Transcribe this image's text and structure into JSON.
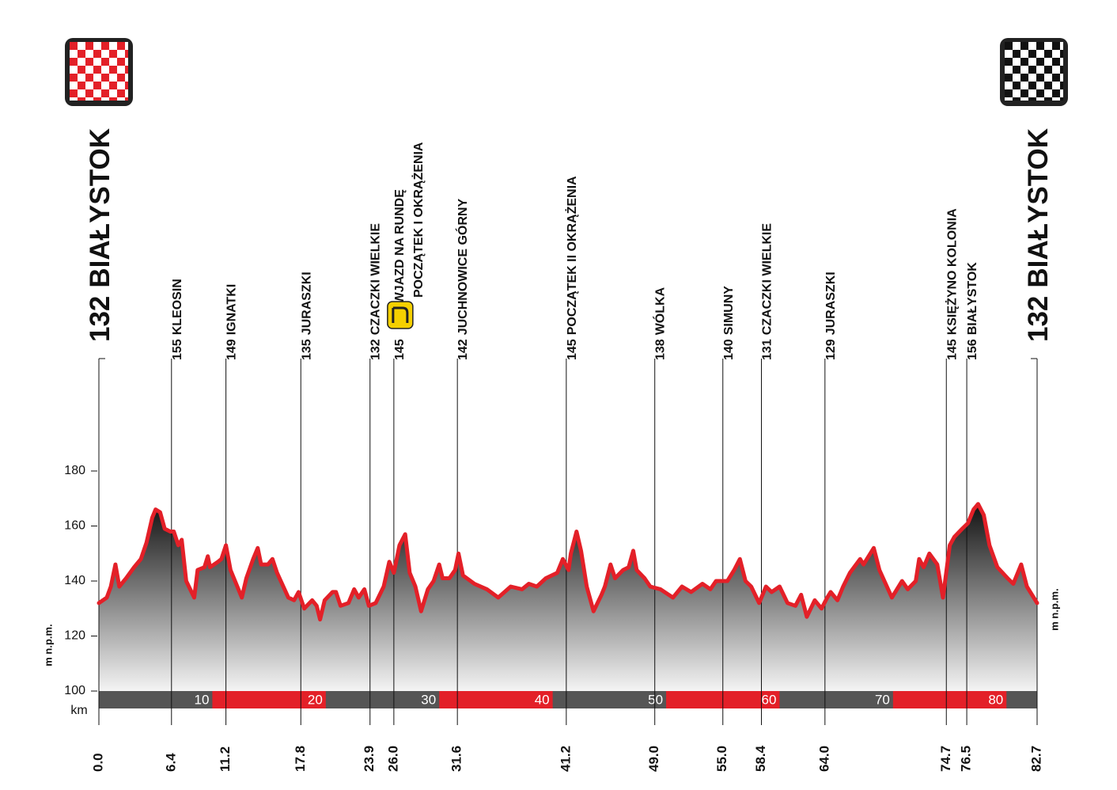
{
  "chart_data": {
    "type": "area",
    "x": [
      0,
      0.7,
      1.05,
      1.46,
      1.8,
      2.4,
      3.1,
      3.7,
      4.2,
      4.7,
      5.0,
      5.4,
      5.8,
      6.3,
      6.6,
      7.0,
      7.3,
      7.7,
      8.4,
      8.7,
      9.3,
      9.6,
      9.8,
      10.5,
      10.8,
      11.2,
      11.6,
      12.6,
      13.0,
      13.6,
      14.0,
      14.3,
      14.9,
      15.3,
      15.7,
      16.7,
      17.2,
      17.6,
      18.1,
      18.8,
      19.2,
      19.5,
      19.9,
      20.6,
      20.9,
      21.3,
      22.0,
      22.5,
      22.9,
      23.4,
      23.8,
      24.4,
      25.1,
      25.6,
      26.0,
      26.5,
      27.0,
      27.4,
      27.9,
      28.4,
      29.0,
      29.5,
      30.0,
      30.3,
      30.9,
      31.4,
      31.7,
      32.1,
      33.1,
      34.2,
      35.2,
      36.3,
      37.3,
      37.9,
      38.6,
      39.4,
      40.4,
      40.9,
      41.4,
      41.6,
      42.1,
      42.5,
      43.0,
      43.6,
      44.3,
      44.6,
      45.1,
      45.5,
      46.2,
      46.7,
      47.1,
      47.4,
      48.1,
      48.6,
      49.5,
      50.6,
      51.4,
      52.2,
      53.2,
      53.9,
      54.4,
      55.4,
      56.0,
      56.5,
      57.0,
      57.5,
      58.2,
      58.8,
      59.3,
      60.0,
      60.7,
      61.4,
      61.9,
      62.4,
      63.1,
      63.7,
      64.2,
      64.5,
      65.1,
      65.6,
      66.2,
      67.1,
      67.4,
      68.3,
      68.8,
      69.9,
      70.8,
      71.3,
      72.0,
      72.3,
      72.7,
      73.2,
      73.9,
      74.4,
      75.0,
      75.4,
      76.1,
      76.6,
      77.1,
      77.5,
      78.0,
      78.5,
      79.2,
      80.1,
      80.6,
      81.3,
      81.8,
      82.7
    ],
    "values": [
      132,
      134,
      138,
      146,
      138,
      141,
      145,
      148,
      154,
      163,
      166,
      165,
      159,
      158,
      158,
      153,
      155,
      140,
      134,
      144,
      145,
      149,
      145,
      147,
      148,
      153,
      144,
      134,
      141,
      148,
      152,
      146,
      146,
      148,
      143,
      134,
      133,
      136,
      130,
      133,
      131,
      126,
      133,
      136,
      136,
      131,
      132,
      137,
      134,
      137,
      131,
      132,
      138,
      147,
      143,
      153,
      157,
      143,
      138,
      129,
      137,
      140,
      146,
      141,
      141,
      144,
      150,
      142,
      139,
      137,
      134,
      138,
      137,
      139,
      138,
      141,
      143,
      148,
      144,
      150,
      158,
      151,
      138,
      129,
      135,
      138,
      146,
      141,
      144,
      145,
      151,
      144,
      141,
      138,
      137,
      134,
      138,
      136,
      139,
      137,
      140,
      140,
      144,
      148,
      140,
      138,
      132,
      138,
      136,
      138,
      132,
      131,
      135,
      127,
      133,
      130,
      134,
      136,
      133,
      138,
      143,
      148,
      146,
      152,
      144,
      134,
      140,
      137,
      140,
      148,
      145,
      150,
      146,
      134,
      153,
      156,
      159,
      161,
      166,
      168,
      164,
      153,
      145,
      141,
      139,
      146,
      138,
      132
    ],
    "color": "#e32028",
    "fill_colors": [
      "#151515",
      "#f4f4f4"
    ],
    "xlim": [
      0,
      82.7
    ],
    "ylim": [
      100,
      180
    ],
    "yticks": [
      100,
      120,
      140,
      160,
      180
    ],
    "ylabel": "m n.p.m.",
    "xlabel": "km",
    "km_marks": [
      10,
      20,
      30,
      40,
      50,
      60,
      70,
      80
    ],
    "km_bar_colors": [
      "#555555",
      "#e32028"
    ],
    "start": {
      "km": {
        "value": 0,
        "label": "0.0"
      },
      "elevation": 132,
      "name": [
        "BIAŁYSTOK"
      ]
    },
    "finish": {
      "km": 82.7,
      "elevation": 132,
      "name": [
        "BIAŁYSTOK"
      ]
    },
    "waypoints": [
      {
        "km": 6.4,
        "elevation": 155,
        "name": [
          "KLEOSIN"
        ]
      },
      {
        "km": 11.2,
        "elevation": 149,
        "name": [
          "IGNATKI"
        ]
      },
      {
        "km": 17.8,
        "elevation": 135,
        "name": [
          "JURASZKI"
        ]
      },
      {
        "km": 23.9,
        "elevation": 132,
        "name": [
          "CZACZKI WIELKIE"
        ]
      },
      {
        "km": {
          "value": 26,
          "label": "26.0"
        },
        "elevation": 145,
        "name": [
          "WJAZD NA RUNDĘ",
          "POCZĄTEK I OKRĄŻENIA"
        ]
      },
      {
        "km": 31.6,
        "elevation": 142,
        "name": [
          "JUCHNOWICE GÓRNY"
        ]
      },
      {
        "km": 41.2,
        "elevation": 145,
        "name": [
          "POCZĄTEK II OKRĄŻENIA"
        ]
      },
      {
        "km": {
          "value": 49,
          "label": "49.0"
        },
        "elevation": 138,
        "name": [
          "WÓLKA"
        ]
      },
      {
        "km": {
          "value": 55,
          "label": "55.0"
        },
        "elevation": 140,
        "name": [
          "SIMUNY"
        ]
      },
      {
        "km": 58.4,
        "elevation": 131,
        "name": [
          "CZACZKI WIELKIE"
        ]
      },
      {
        "km": {
          "value": 64,
          "label": "64.0"
        },
        "elevation": 129,
        "name": [
          "JURASZKI"
        ]
      },
      {
        "km": 74.7,
        "elevation": 145,
        "name": [
          "KSIĘŻYNO KOLONIA"
        ]
      },
      {
        "km": 76.5,
        "elevation": 156,
        "name": [
          "BIAŁYSTOK"
        ]
      }
    ]
  }
}
